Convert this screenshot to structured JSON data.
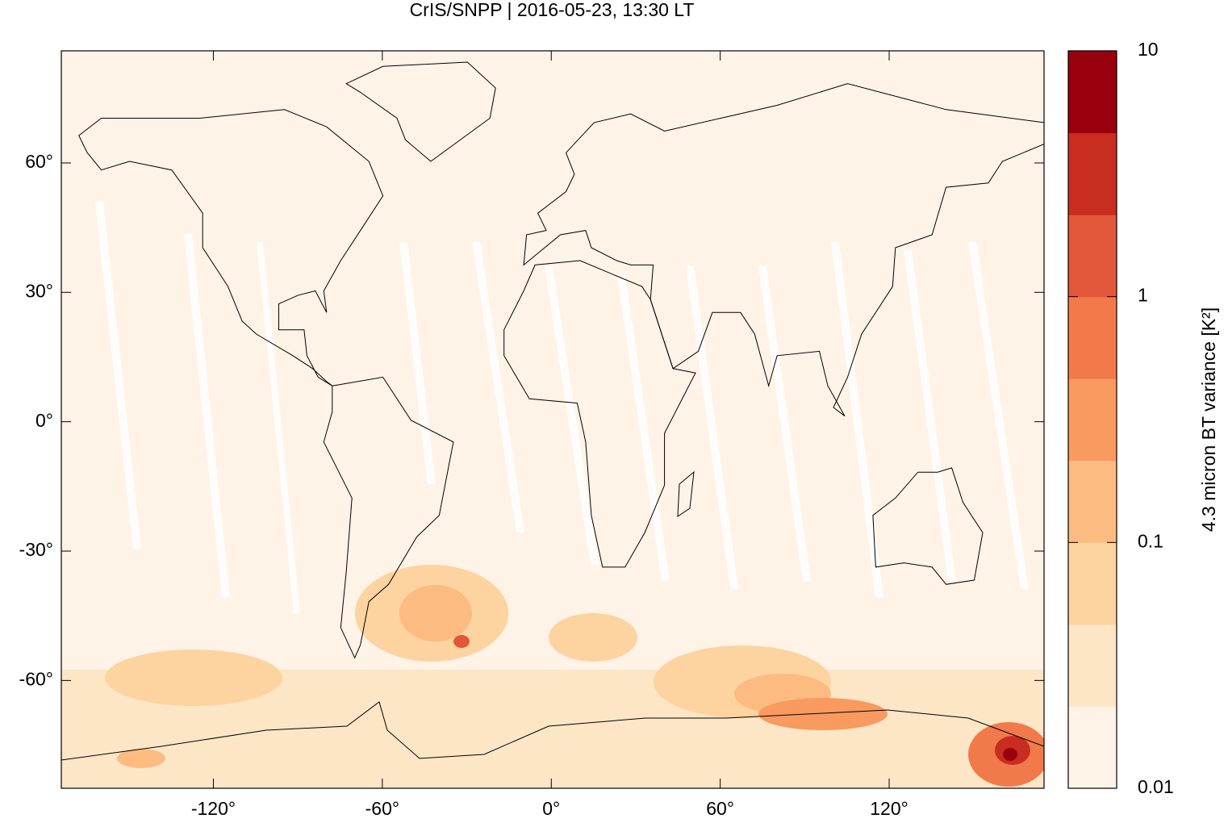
{
  "chart_data": {
    "type": "map",
    "title": "CrIS/SNPP | 2016-05-23, 13:30 LT",
    "xlim": [
      -174,
      175
    ],
    "ylim": [
      -85,
      86
    ],
    "xticks": [
      {
        "value": -120,
        "label": "-120°"
      },
      {
        "value": -60,
        "label": "-60°"
      },
      {
        "value": 0,
        "label": "0°"
      },
      {
        "value": 60,
        "label": "60°"
      },
      {
        "value": 120,
        "label": "120°"
      }
    ],
    "yticks": [
      {
        "value": -60,
        "label": "-60°"
      },
      {
        "value": -30,
        "label": "-30°"
      },
      {
        "value": 0,
        "label": "0°"
      },
      {
        "value": 30,
        "label": "30°"
      },
      {
        "value": 60,
        "label": "60°"
      }
    ],
    "colorbar": {
      "label": "4.3 micron BT variance [K²]",
      "log_scale": true,
      "lim": [
        0.01,
        10
      ],
      "ticks": [
        0.01,
        0.1,
        1,
        10
      ],
      "colors": [
        "#fef3e6",
        "#fde6c6",
        "#fdd3a0",
        "#fcbb80",
        "#f99a60",
        "#f27a4a",
        "#e2573a",
        "#c92d20",
        "#99000d"
      ]
    }
  }
}
